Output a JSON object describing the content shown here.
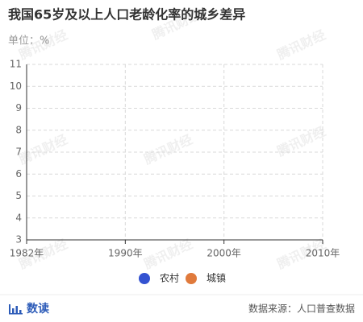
{
  "chart_data": {
    "type": "line",
    "title": "我国65岁及以上人口老龄化率的城乡差异",
    "subtitle": "单位：%",
    "categories": [
      "1982年",
      "1990年",
      "2000年",
      "2010年"
    ],
    "series": [
      {
        "name": "农村",
        "color": "#3352d1",
        "values": [
          null,
          null,
          null,
          null
        ]
      },
      {
        "name": "城镇",
        "color": "#e07a3c",
        "values": [
          null,
          null,
          null,
          null
        ]
      }
    ],
    "ylim": [
      3,
      11
    ],
    "yticks": [
      3,
      4,
      5,
      6,
      7,
      8,
      9,
      10,
      11
    ],
    "grid": true,
    "legend": "bottom"
  },
  "watermark": "腾讯财经",
  "footer": {
    "brand": "数读",
    "source": "数据来源：人口普查数据"
  }
}
